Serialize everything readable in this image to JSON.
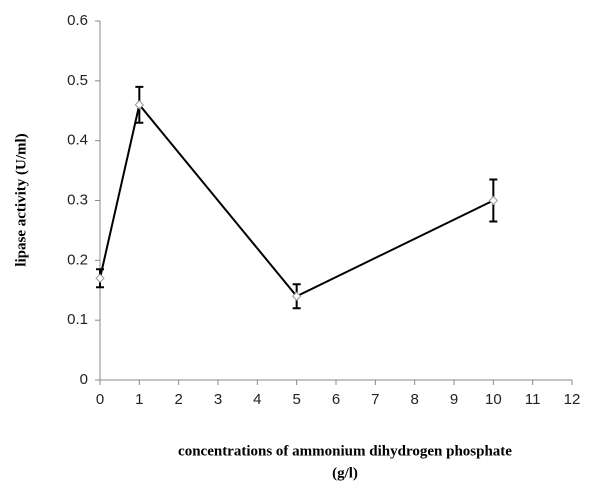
{
  "chart_data": {
    "type": "line",
    "ylabel": "lipase activity (U/ml)",
    "xlabel": [
      "concentrations of ammonium dihydrogen phosphate",
      "(g/l)"
    ],
    "x": [
      0,
      1,
      5,
      10
    ],
    "series": [
      {
        "name": "lipase activity",
        "color": "#000000",
        "values": [
          0.17,
          0.46,
          0.14,
          0.3
        ],
        "errors": [
          0.015,
          0.03,
          0.02,
          0.035
        ]
      }
    ],
    "xlim": [
      0,
      12
    ],
    "xticks": [
      0,
      1,
      2,
      3,
      4,
      5,
      6,
      7,
      8,
      9,
      10,
      11,
      12
    ],
    "ylim": [
      0,
      0.6
    ],
    "yticks": [
      0,
      0.1,
      0.2,
      0.3,
      0.4,
      0.5,
      0.6
    ],
    "grid": false,
    "legend": false
  }
}
